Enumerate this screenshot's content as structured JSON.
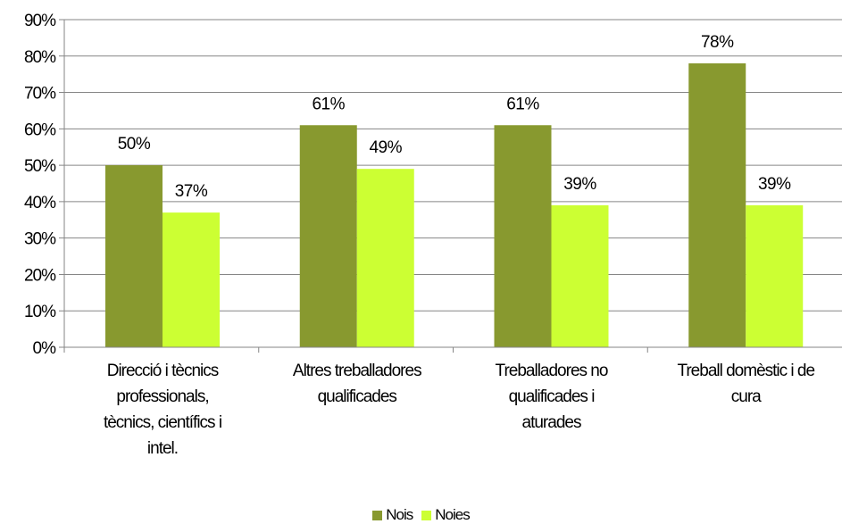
{
  "chart_data": {
    "type": "bar",
    "categories": [
      [
        "Direcció i tècnics",
        "professionals,",
        "tècnics, científics i",
        "intel."
      ],
      [
        "Altres treballadores",
        "qualificades"
      ],
      [
        "Treballadores no",
        "qualificades i",
        "aturades"
      ],
      [
        "Treball domèstic i de",
        "cura"
      ]
    ],
    "series": [
      {
        "name": "Nois",
        "values": [
          50,
          61,
          61,
          78
        ],
        "labels": [
          "50%",
          "61%",
          "61%",
          "78%"
        ],
        "color": "#88992f"
      },
      {
        "name": "Noies",
        "values": [
          37,
          49,
          39,
          39
        ],
        "labels": [
          "37%",
          "49%",
          "39%",
          "39%"
        ],
        "color": "#ccff33"
      }
    ],
    "ylim": [
      0,
      90
    ],
    "yticks": [
      "0%",
      "10%",
      "20%",
      "30%",
      "40%",
      "50%",
      "60%",
      "70%",
      "80%",
      "90%"
    ],
    "grid": true,
    "legend_position": "bottom"
  }
}
